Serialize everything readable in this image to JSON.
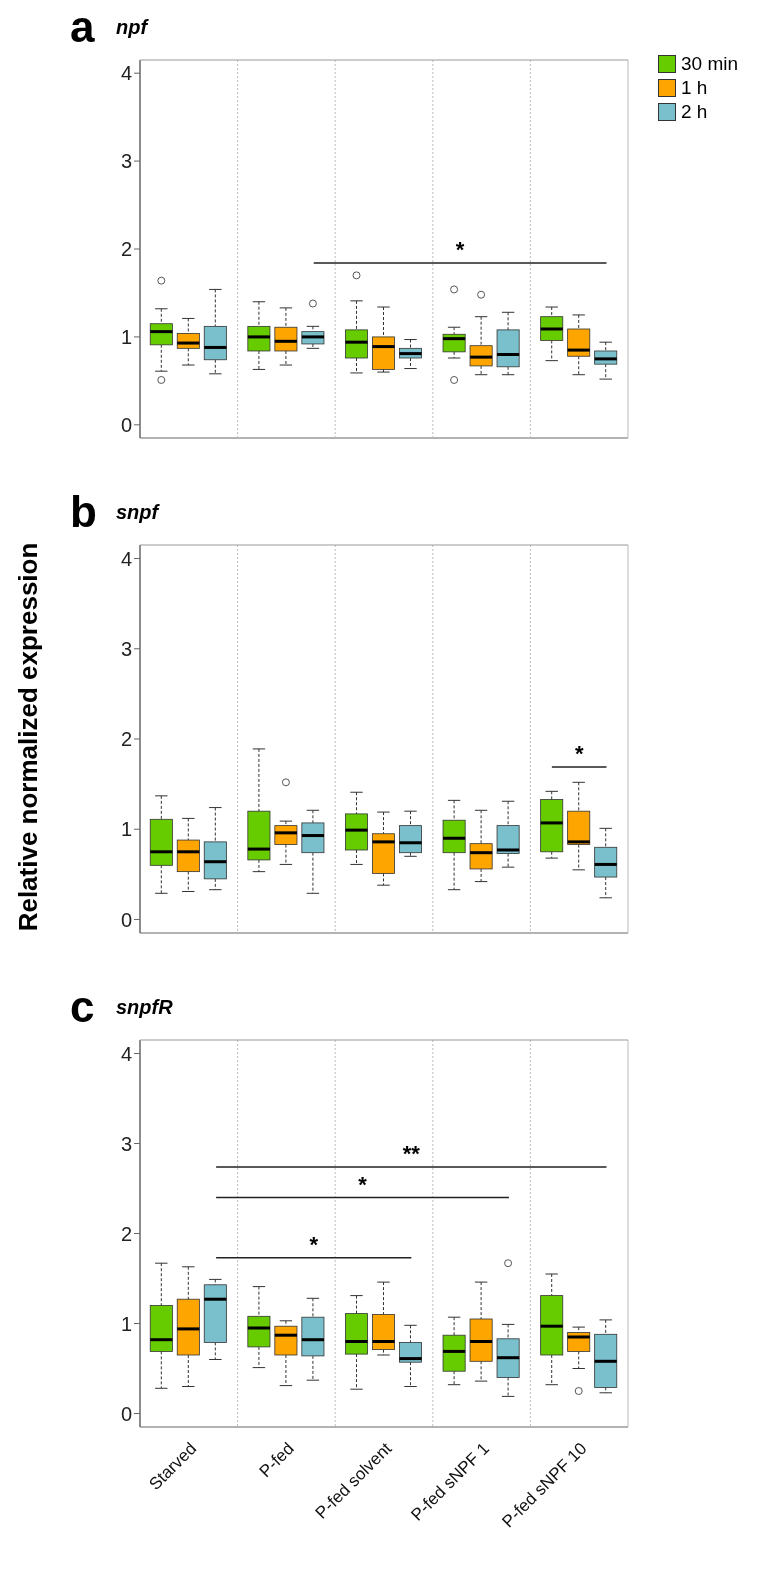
{
  "chart_data": [
    {
      "type": "box",
      "title": "a",
      "subtitle": "npf",
      "categories": [
        null,
        null,
        null,
        null,
        null
      ],
      "ylim": [
        -0.15,
        4.15
      ],
      "yticks": [
        0,
        1,
        2,
        3,
        4
      ],
      "legend": "top right",
      "tick_labels": "y",
      "annotations": [
        "*"
      ],
      "series": [
        {
          "name": "30 min",
          "color": "#66cc00",
          "boxes": [
            {
              "low": 0.61,
              "q1": 0.91,
              "median": 1.06,
              "q3": 1.15,
              "high": 1.32,
              "outliers": [
                1.64,
                0.51
              ]
            },
            {
              "low": 0.63,
              "q1": 0.84,
              "median": 1.0,
              "q3": 1.12,
              "high": 1.4
            },
            {
              "low": 0.59,
              "q1": 0.76,
              "median": 0.94,
              "q3": 1.08,
              "high": 1.41,
              "outliers": [
                1.7
              ]
            },
            {
              "low": 0.76,
              "q1": 0.83,
              "median": 0.98,
              "q3": 1.03,
              "high": 1.11,
              "outliers": [
                1.54,
                0.51
              ]
            },
            {
              "low": 0.73,
              "q1": 0.96,
              "median": 1.09,
              "q3": 1.23,
              "high": 1.34
            }
          ]
        },
        {
          "name": "1 h",
          "color": "#ffa500",
          "boxes": [
            {
              "low": 0.68,
              "q1": 0.87,
              "median": 0.93,
              "q3": 1.04,
              "high": 1.21
            },
            {
              "low": 0.68,
              "q1": 0.84,
              "median": 0.95,
              "q3": 1.11,
              "high": 1.33
            },
            {
              "low": 0.6,
              "q1": 0.63,
              "median": 0.89,
              "q3": 1.0,
              "high": 1.34
            },
            {
              "low": 0.57,
              "q1": 0.67,
              "median": 0.77,
              "q3": 0.9,
              "high": 1.23,
              "outliers": [
                1.48
              ]
            },
            {
              "low": 0.57,
              "q1": 0.78,
              "median": 0.85,
              "q3": 1.09,
              "high": 1.25
            }
          ]
        },
        {
          "name": "2 h",
          "color": "#79c0cc",
          "boxes": [
            {
              "low": 0.58,
              "q1": 0.74,
              "median": 0.88,
              "q3": 1.12,
              "high": 1.54
            },
            {
              "low": 0.87,
              "q1": 0.92,
              "median": 1.0,
              "q3": 1.06,
              "high": 1.12,
              "outliers": [
                1.38
              ]
            },
            {
              "low": 0.64,
              "q1": 0.76,
              "median": 0.81,
              "q3": 0.87,
              "high": 0.97
            },
            {
              "low": 0.57,
              "q1": 0.66,
              "median": 0.8,
              "q3": 1.08,
              "high": 1.28
            },
            {
              "low": 0.52,
              "q1": 0.69,
              "median": 0.75,
              "q3": 0.84,
              "high": 0.94
            }
          ]
        }
      ]
    },
    {
      "type": "box",
      "title": "b",
      "subtitle": "snpf",
      "ylabel": "Relative normalized expression",
      "categories": [
        null,
        null,
        null,
        null,
        null
      ],
      "ylim": [
        -0.15,
        4.15
      ],
      "yticks": [
        0,
        1,
        2,
        3,
        4
      ],
      "tick_labels": "y",
      "annotations": [
        "*"
      ],
      "series": [
        {
          "color": "#66cc00",
          "boxes": [
            {
              "low": 0.29,
              "q1": 0.6,
              "median": 0.75,
              "q3": 1.11,
              "high": 1.37
            },
            {
              "low": 0.53,
              "q1": 0.66,
              "median": 0.78,
              "q3": 1.2,
              "high": 1.89
            },
            {
              "low": 0.61,
              "q1": 0.77,
              "median": 0.99,
              "q3": 1.17,
              "high": 1.41
            },
            {
              "low": 0.33,
              "q1": 0.74,
              "median": 0.9,
              "q3": 1.1,
              "high": 1.32
            },
            {
              "low": 0.68,
              "q1": 0.75,
              "median": 1.07,
              "q3": 1.33,
              "high": 1.42
            }
          ]
        },
        {
          "color": "#ffa500",
          "boxes": [
            {
              "low": 0.31,
              "q1": 0.53,
              "median": 0.75,
              "q3": 0.88,
              "high": 1.12
            },
            {
              "low": 0.61,
              "q1": 0.83,
              "median": 0.96,
              "q3": 1.04,
              "high": 1.09,
              "outliers": [
                1.52
              ]
            },
            {
              "low": 0.38,
              "q1": 0.51,
              "median": 0.86,
              "q3": 0.95,
              "high": 1.19
            },
            {
              "low": 0.42,
              "q1": 0.56,
              "median": 0.74,
              "q3": 0.84,
              "high": 1.21
            },
            {
              "low": 0.55,
              "q1": 0.83,
              "median": 0.86,
              "q3": 1.2,
              "high": 1.52
            }
          ]
        },
        {
          "color": "#79c0cc",
          "boxes": [
            {
              "low": 0.33,
              "q1": 0.45,
              "median": 0.64,
              "q3": 0.86,
              "high": 1.24
            },
            {
              "low": 0.29,
              "q1": 0.74,
              "median": 0.93,
              "q3": 1.07,
              "high": 1.21
            },
            {
              "low": 0.7,
              "q1": 0.74,
              "median": 0.85,
              "q3": 1.04,
              "high": 1.2
            },
            {
              "low": 0.58,
              "q1": 0.73,
              "median": 0.77,
              "q3": 1.04,
              "high": 1.31
            },
            {
              "low": 0.24,
              "q1": 0.47,
              "median": 0.61,
              "q3": 0.8,
              "high": 1.01
            }
          ]
        }
      ]
    },
    {
      "type": "box",
      "title": "c",
      "subtitle": "snpfR",
      "categories": [
        "Starved",
        "P-fed",
        "P-fed solvent",
        "P-fed sNPF 1",
        "P-fed sNPF 10"
      ],
      "ylim": [
        -0.15,
        4.15
      ],
      "yticks": [
        0,
        1,
        2,
        3,
        4
      ],
      "annotations": [
        "*",
        "*",
        "**"
      ],
      "series": [
        {
          "color": "#66cc00",
          "boxes": [
            {
              "low": 0.28,
              "q1": 0.69,
              "median": 0.82,
              "q3": 1.2,
              "high": 1.67
            },
            {
              "low": 0.51,
              "q1": 0.74,
              "median": 0.95,
              "q3": 1.08,
              "high": 1.41
            },
            {
              "low": 0.27,
              "q1": 0.66,
              "median": 0.8,
              "q3": 1.11,
              "high": 1.31
            },
            {
              "low": 0.32,
              "q1": 0.47,
              "median": 0.69,
              "q3": 0.87,
              "high": 1.07
            },
            {
              "low": 0.32,
              "q1": 0.65,
              "median": 0.97,
              "q3": 1.31,
              "high": 1.55
            }
          ]
        },
        {
          "color": "#ffa500",
          "boxes": [
            {
              "low": 0.3,
              "q1": 0.65,
              "median": 0.94,
              "q3": 1.27,
              "high": 1.63
            },
            {
              "low": 0.31,
              "q1": 0.65,
              "median": 0.87,
              "q3": 0.97,
              "high": 1.03
            },
            {
              "low": 0.65,
              "q1": 0.71,
              "median": 0.8,
              "q3": 1.1,
              "high": 1.46
            },
            {
              "low": 0.36,
              "q1": 0.58,
              "median": 0.8,
              "q3": 1.05,
              "high": 1.46
            },
            {
              "low": 0.5,
              "q1": 0.69,
              "median": 0.85,
              "q3": 0.9,
              "high": 0.96,
              "outliers": [
                0.25
              ]
            }
          ]
        },
        {
          "color": "#79c0cc",
          "boxes": [
            {
              "low": 0.6,
              "q1": 0.79,
              "median": 1.27,
              "q3": 1.43,
              "high": 1.49
            },
            {
              "low": 0.37,
              "q1": 0.64,
              "median": 0.82,
              "q3": 1.07,
              "high": 1.28
            },
            {
              "low": 0.3,
              "q1": 0.57,
              "median": 0.61,
              "q3": 0.79,
              "high": 0.98
            },
            {
              "low": 0.19,
              "q1": 0.4,
              "median": 0.62,
              "q3": 0.83,
              "high": 0.99,
              "outliers": [
                1.67
              ]
            },
            {
              "low": 0.23,
              "q1": 0.29,
              "median": 0.58,
              "q3": 0.88,
              "high": 1.04
            }
          ]
        }
      ]
    }
  ]
}
